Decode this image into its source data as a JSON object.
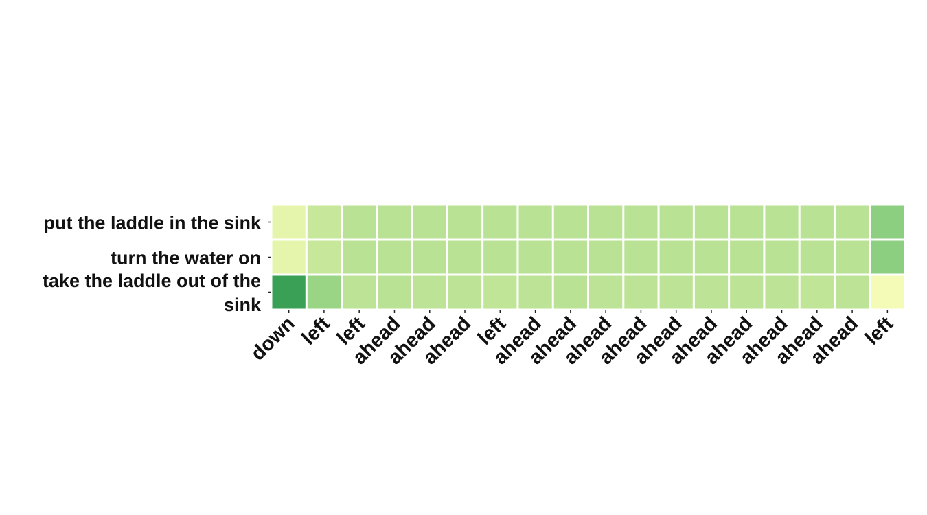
{
  "chart_data": {
    "type": "heatmap",
    "title": "",
    "xlabel": "",
    "ylabel": "",
    "colorscale": "YlGn",
    "value_range": [
      0,
      1
    ],
    "x_categories": [
      "down",
      "left",
      "left",
      "ahead",
      "ahead",
      "ahead",
      "left",
      "ahead",
      "ahead",
      "ahead",
      "ahead",
      "ahead",
      "ahead",
      "ahead",
      "ahead",
      "ahead",
      "ahead",
      "left"
    ],
    "y_categories": [
      [
        "put the laddle in the sink"
      ],
      [
        "turn the water on"
      ],
      [
        "take the laddle out of the",
        "sink"
      ]
    ],
    "values": [
      [
        0.2,
        0.3,
        0.34,
        0.34,
        0.34,
        0.34,
        0.34,
        0.34,
        0.34,
        0.34,
        0.34,
        0.34,
        0.34,
        0.34,
        0.34,
        0.34,
        0.34,
        0.45
      ],
      [
        0.2,
        0.3,
        0.34,
        0.34,
        0.34,
        0.34,
        0.34,
        0.34,
        0.34,
        0.34,
        0.34,
        0.34,
        0.34,
        0.34,
        0.34,
        0.34,
        0.34,
        0.45
      ],
      [
        0.66,
        0.42,
        0.33,
        0.34,
        0.33,
        0.33,
        0.32,
        0.33,
        0.34,
        0.33,
        0.33,
        0.33,
        0.33,
        0.33,
        0.33,
        0.32,
        0.33,
        0.14
      ]
    ],
    "grid": false,
    "legend": "none"
  }
}
